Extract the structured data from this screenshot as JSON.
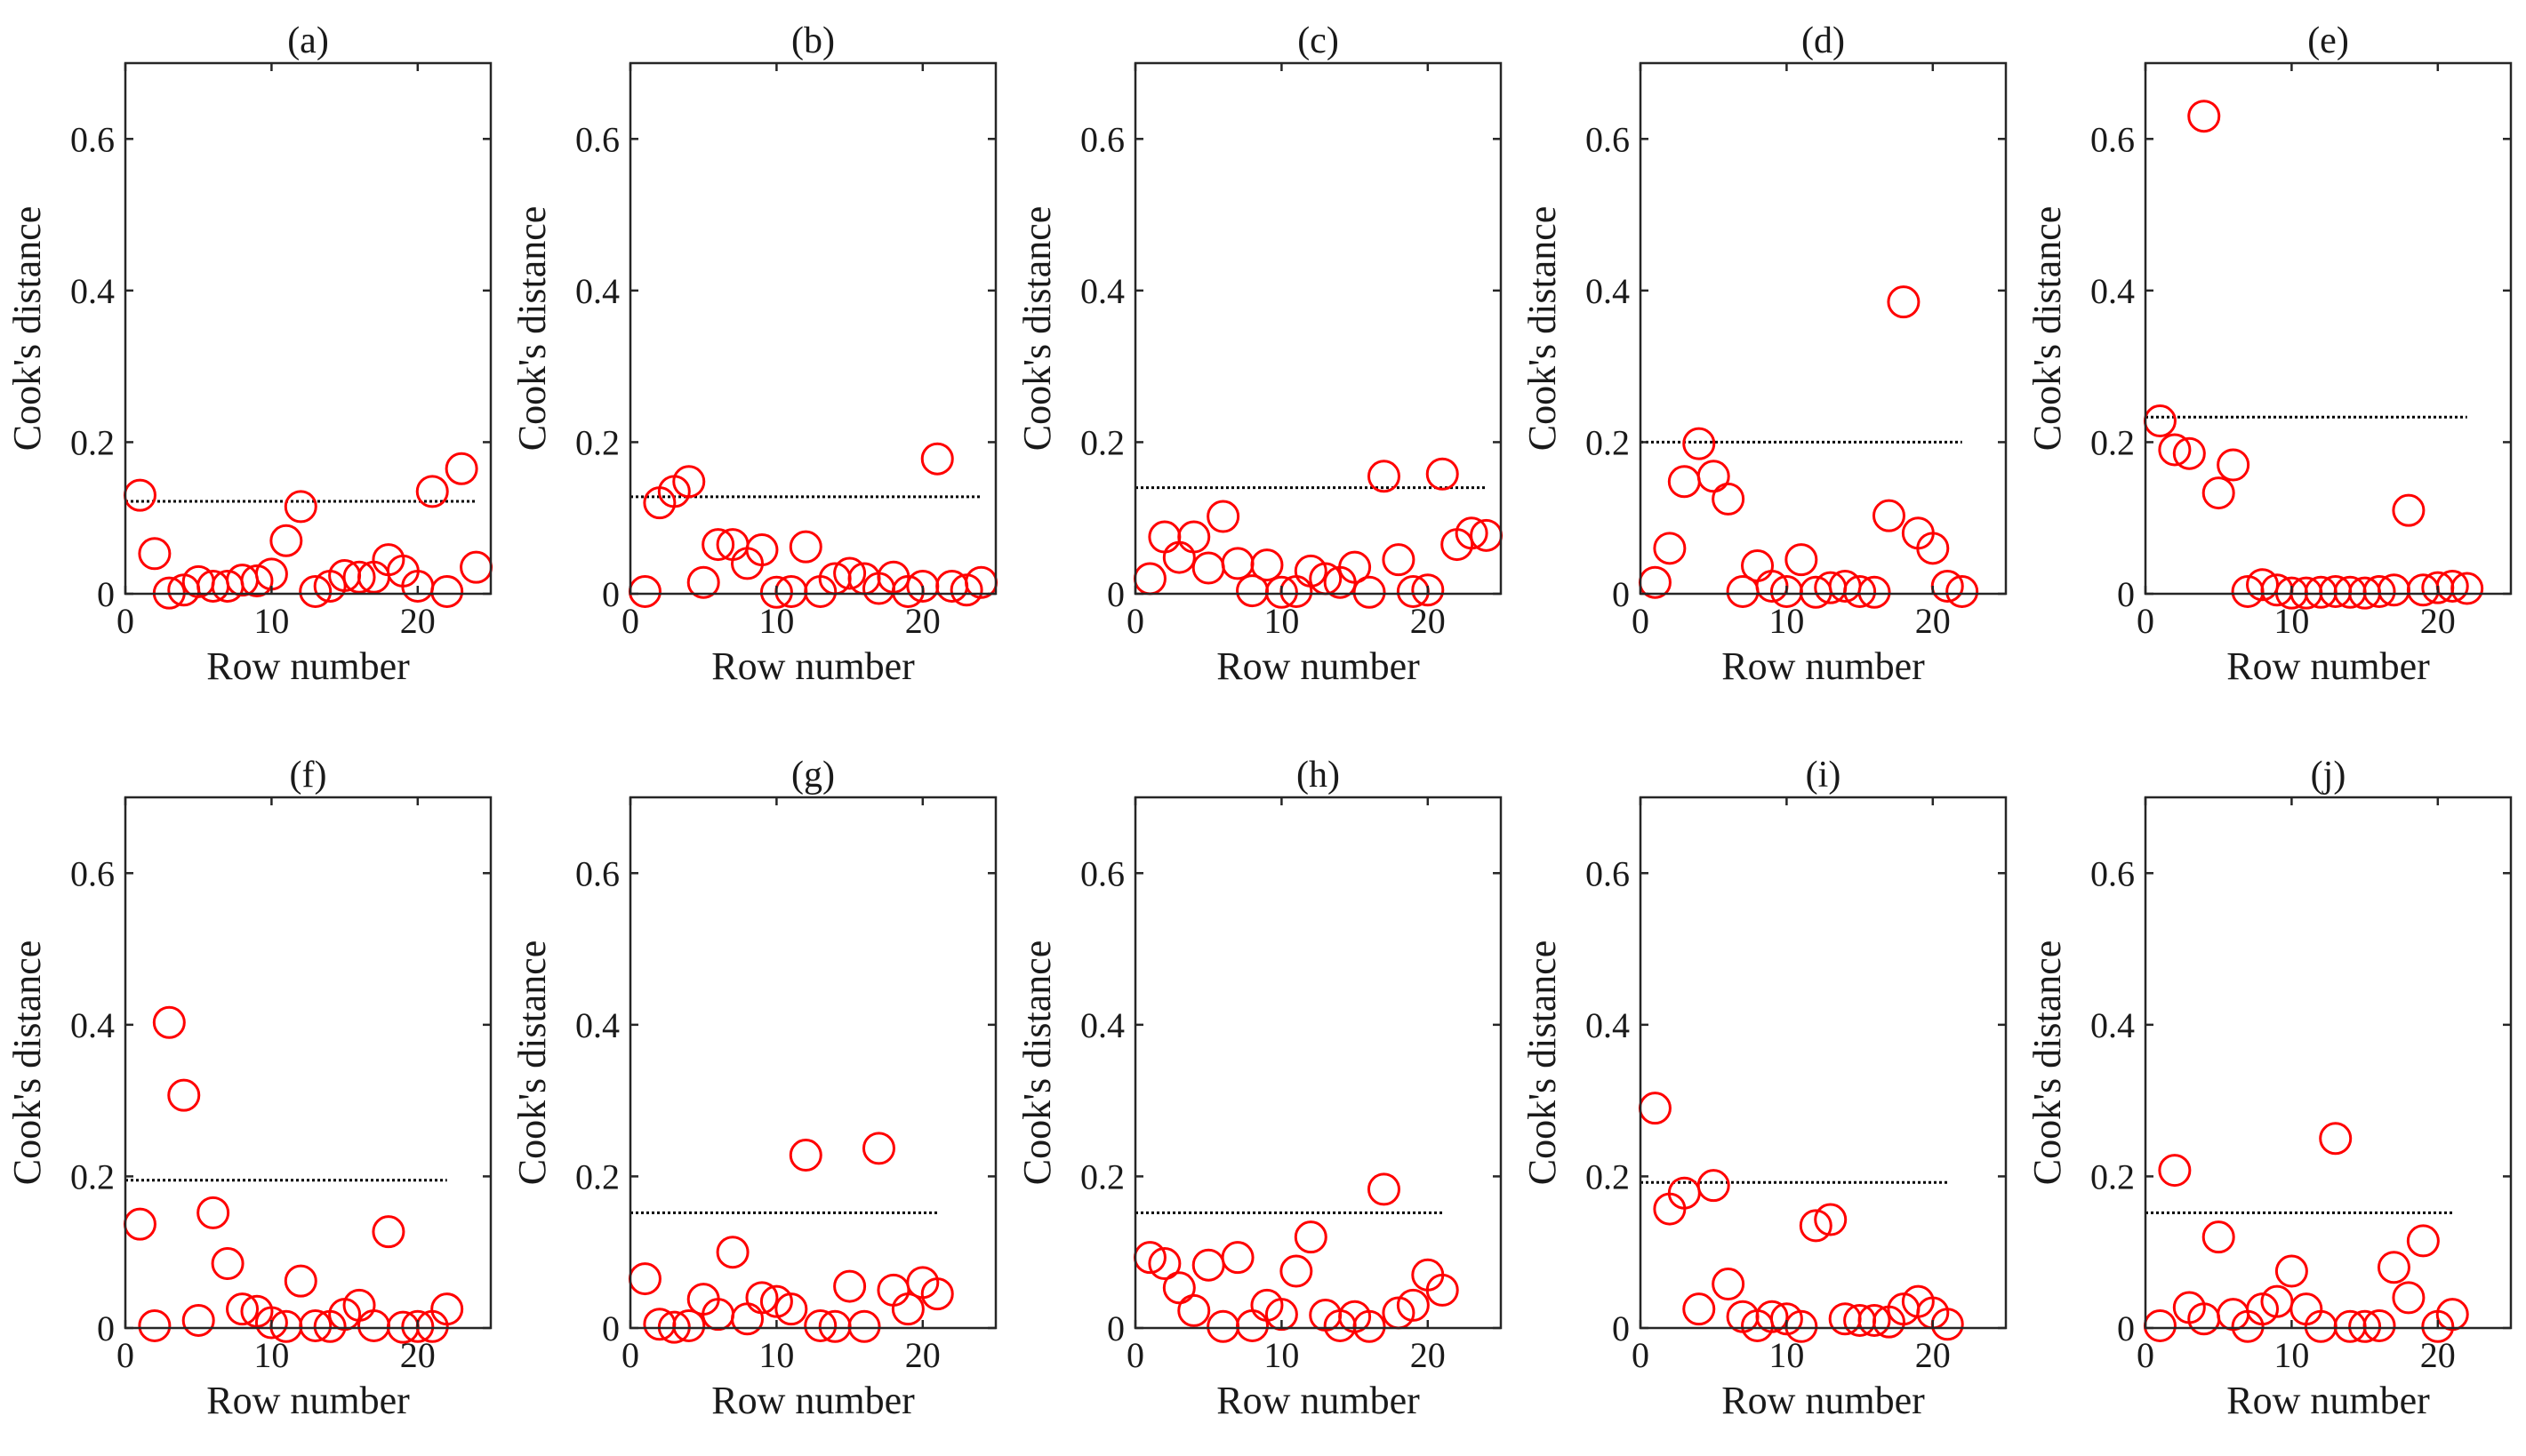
{
  "colors": {
    "marker": "#ff0000",
    "axis": "#262626",
    "threshold": "#000000"
  },
  "chart_data": [
    {
      "type": "scatter",
      "title": "(a)",
      "xlabel": "Row number",
      "ylabel": "Cook's distance",
      "xlim": [
        0,
        25
      ],
      "ylim": [
        0,
        0.7
      ],
      "xticks": [
        0,
        10,
        20
      ],
      "yticks": [
        0,
        0.2,
        0.4,
        0.6
      ],
      "grid": false,
      "threshold": {
        "value": 0.122,
        "x": [
          0,
          24
        ],
        "style": "dotted"
      },
      "series": [
        {
          "x": [
            1,
            2,
            3,
            4,
            5,
            6,
            7,
            8,
            9,
            10,
            11,
            12,
            13,
            14,
            15,
            16,
            17,
            18,
            19,
            20,
            21,
            22,
            23,
            24
          ],
          "y": [
            0.13,
            0.053,
            0.001,
            0.005,
            0.016,
            0.01,
            0.01,
            0.018,
            0.017,
            0.026,
            0.07,
            0.115,
            0.003,
            0.01,
            0.024,
            0.022,
            0.022,
            0.045,
            0.03,
            0.01,
            0.135,
            0.003,
            0.165,
            0.035
          ]
        }
      ]
    },
    {
      "type": "scatter",
      "title": "(b)",
      "xlabel": "Row number",
      "ylabel": "Cook's distance",
      "xlim": [
        0,
        25
      ],
      "ylim": [
        0,
        0.7
      ],
      "xticks": [
        0,
        10,
        20
      ],
      "yticks": [
        0,
        0.2,
        0.4,
        0.6
      ],
      "grid": false,
      "threshold": {
        "value": 0.128,
        "x": [
          0,
          24
        ],
        "style": "dotted"
      },
      "series": [
        {
          "x": [
            1,
            2,
            3,
            4,
            5,
            6,
            7,
            8,
            9,
            10,
            11,
            12,
            13,
            14,
            15,
            16,
            17,
            18,
            19,
            20,
            21,
            22,
            23,
            24
          ],
          "y": [
            0.003,
            0.12,
            0.135,
            0.148,
            0.015,
            0.065,
            0.065,
            0.04,
            0.058,
            0.002,
            0.003,
            0.062,
            0.003,
            0.02,
            0.027,
            0.02,
            0.007,
            0.022,
            0.003,
            0.01,
            0.178,
            0.01,
            0.005,
            0.015
          ]
        }
      ]
    },
    {
      "type": "scatter",
      "title": "(c)",
      "xlabel": "Row number",
      "ylabel": "Cook's distance",
      "xlim": [
        0,
        25
      ],
      "ylim": [
        0,
        0.7
      ],
      "xticks": [
        0,
        10,
        20
      ],
      "yticks": [
        0,
        0.2,
        0.4,
        0.6
      ],
      "grid": false,
      "threshold": {
        "value": 0.14,
        "x": [
          0,
          24
        ],
        "style": "dotted"
      },
      "series": [
        {
          "x": [
            1,
            2,
            3,
            4,
            5,
            6,
            7,
            8,
            9,
            10,
            11,
            12,
            13,
            14,
            15,
            16,
            17,
            18,
            19,
            20,
            21,
            22,
            23,
            24
          ],
          "y": [
            0.02,
            0.075,
            0.048,
            0.075,
            0.034,
            0.102,
            0.04,
            0.004,
            0.038,
            0.002,
            0.003,
            0.03,
            0.02,
            0.015,
            0.035,
            0.002,
            0.155,
            0.045,
            0.003,
            0.005,
            0.158,
            0.065,
            0.08,
            0.077
          ]
        }
      ]
    },
    {
      "type": "scatter",
      "title": "(d)",
      "xlabel": "Row number",
      "ylabel": "Cook's distance",
      "xlim": [
        0,
        25
      ],
      "ylim": [
        0,
        0.7
      ],
      "xticks": [
        0,
        10,
        20
      ],
      "yticks": [
        0,
        0.2,
        0.4,
        0.6
      ],
      "grid": false,
      "threshold": {
        "value": 0.2,
        "x": [
          0,
          22
        ],
        "style": "dotted"
      },
      "series": [
        {
          "x": [
            1,
            2,
            3,
            4,
            5,
            6,
            7,
            8,
            9,
            10,
            11,
            12,
            13,
            14,
            15,
            16,
            17,
            18,
            19,
            20,
            21,
            22
          ],
          "y": [
            0.015,
            0.06,
            0.148,
            0.198,
            0.155,
            0.125,
            0.003,
            0.037,
            0.01,
            0.003,
            0.045,
            0.002,
            0.008,
            0.01,
            0.003,
            0.002,
            0.103,
            0.385,
            0.08,
            0.06,
            0.01,
            0.003
          ]
        }
      ]
    },
    {
      "type": "scatter",
      "title": "(e)",
      "xlabel": "Row number",
      "ylabel": "Cook's distance",
      "xlim": [
        0,
        25
      ],
      "ylim": [
        0,
        0.7
      ],
      "xticks": [
        0,
        10,
        20
      ],
      "yticks": [
        0,
        0.2,
        0.4,
        0.6
      ],
      "grid": false,
      "threshold": {
        "value": 0.233,
        "x": [
          0,
          22
        ],
        "style": "dotted"
      },
      "series": [
        {
          "x": [
            1,
            2,
            3,
            4,
            5,
            6,
            7,
            8,
            9,
            10,
            11,
            12,
            13,
            14,
            15,
            16,
            17,
            18,
            19,
            20,
            21,
            22
          ],
          "y": [
            0.228,
            0.19,
            0.185,
            0.63,
            0.133,
            0.17,
            0.003,
            0.012,
            0.005,
            0.001,
            0.001,
            0.002,
            0.003,
            0.002,
            0.001,
            0.003,
            0.005,
            0.11,
            0.005,
            0.008,
            0.01,
            0.007
          ]
        }
      ]
    },
    {
      "type": "scatter",
      "title": "(f)",
      "xlabel": "Row number",
      "ylabel": "Cook's distance",
      "xlim": [
        0,
        25
      ],
      "ylim": [
        0,
        0.7
      ],
      "xticks": [
        0,
        10,
        20
      ],
      "yticks": [
        0,
        0.2,
        0.4,
        0.6
      ],
      "grid": false,
      "threshold": {
        "value": 0.195,
        "x": [
          0,
          22
        ],
        "style": "dotted"
      },
      "series": [
        {
          "x": [
            1,
            2,
            3,
            4,
            5,
            6,
            7,
            8,
            9,
            10,
            11,
            12,
            13,
            14,
            15,
            16,
            17,
            18,
            19,
            20,
            21,
            22
          ],
          "y": [
            0.137,
            0.003,
            0.403,
            0.307,
            0.01,
            0.152,
            0.085,
            0.025,
            0.022,
            0.007,
            0.002,
            0.062,
            0.003,
            0.002,
            0.018,
            0.03,
            0.003,
            0.127,
            0.001,
            0.002,
            0.002,
            0.025
          ]
        }
      ]
    },
    {
      "type": "scatter",
      "title": "(g)",
      "xlabel": "Row number",
      "ylabel": "Cook's distance",
      "xlim": [
        0,
        25
      ],
      "ylim": [
        0,
        0.7
      ],
      "xticks": [
        0,
        10,
        20
      ],
      "yticks": [
        0,
        0.2,
        0.4,
        0.6
      ],
      "grid": false,
      "threshold": {
        "value": 0.152,
        "x": [
          0,
          21
        ],
        "style": "dotted"
      },
      "series": [
        {
          "x": [
            1,
            2,
            3,
            4,
            5,
            6,
            7,
            8,
            9,
            10,
            11,
            12,
            13,
            14,
            15,
            16,
            17,
            18,
            19,
            20,
            21
          ],
          "y": [
            0.065,
            0.005,
            0.001,
            0.003,
            0.038,
            0.018,
            0.1,
            0.012,
            0.04,
            0.035,
            0.025,
            0.228,
            0.003,
            0.002,
            0.055,
            0.002,
            0.237,
            0.05,
            0.025,
            0.06,
            0.045
          ]
        }
      ]
    },
    {
      "type": "scatter",
      "title": "(h)",
      "xlabel": "Row number",
      "ylabel": "Cook's distance",
      "xlim": [
        0,
        25
      ],
      "ylim": [
        0,
        0.7
      ],
      "xticks": [
        0,
        10,
        20
      ],
      "yticks": [
        0,
        0.2,
        0.4,
        0.6
      ],
      "grid": false,
      "threshold": {
        "value": 0.152,
        "x": [
          0,
          21
        ],
        "style": "dotted"
      },
      "series": [
        {
          "x": [
            1,
            2,
            3,
            4,
            5,
            6,
            7,
            8,
            9,
            10,
            11,
            12,
            13,
            14,
            15,
            16,
            17,
            18,
            19,
            20,
            21
          ],
          "y": [
            0.093,
            0.085,
            0.053,
            0.023,
            0.083,
            0.002,
            0.093,
            0.003,
            0.03,
            0.018,
            0.075,
            0.12,
            0.017,
            0.003,
            0.015,
            0.002,
            0.183,
            0.02,
            0.03,
            0.07,
            0.05
          ]
        }
      ]
    },
    {
      "type": "scatter",
      "title": "(i)",
      "xlabel": "Row number",
      "ylabel": "Cook's distance",
      "xlim": [
        0,
        25
      ],
      "ylim": [
        0,
        0.7
      ],
      "xticks": [
        0,
        10,
        20
      ],
      "yticks": [
        0,
        0.2,
        0.4,
        0.6
      ],
      "grid": false,
      "threshold": {
        "value": 0.192,
        "x": [
          0,
          21
        ],
        "style": "dotted"
      },
      "series": [
        {
          "x": [
            1,
            2,
            3,
            4,
            5,
            6,
            7,
            8,
            9,
            10,
            11,
            12,
            13,
            14,
            15,
            16,
            17,
            18,
            19,
            20,
            21
          ],
          "y": [
            0.29,
            0.157,
            0.178,
            0.025,
            0.188,
            0.058,
            0.015,
            0.003,
            0.015,
            0.012,
            0.002,
            0.135,
            0.143,
            0.012,
            0.01,
            0.01,
            0.008,
            0.025,
            0.035,
            0.02,
            0.005
          ]
        }
      ]
    },
    {
      "type": "scatter",
      "title": "(j)",
      "xlabel": "Row number",
      "ylabel": "Cook's distance",
      "xlim": [
        0,
        25
      ],
      "ylim": [
        0,
        0.7
      ],
      "xticks": [
        0,
        10,
        20
      ],
      "yticks": [
        0,
        0.2,
        0.4,
        0.6
      ],
      "grid": false,
      "threshold": {
        "value": 0.152,
        "x": [
          0,
          21
        ],
        "style": "dotted"
      },
      "series": [
        {
          "x": [
            1,
            2,
            3,
            4,
            5,
            6,
            7,
            8,
            9,
            10,
            11,
            12,
            13,
            14,
            15,
            16,
            17,
            18,
            19,
            20,
            21
          ],
          "y": [
            0.003,
            0.208,
            0.027,
            0.012,
            0.12,
            0.018,
            0.002,
            0.025,
            0.035,
            0.075,
            0.025,
            0.002,
            0.25,
            0.002,
            0.002,
            0.003,
            0.08,
            0.04,
            0.115,
            0.002,
            0.018
          ]
        }
      ]
    }
  ]
}
